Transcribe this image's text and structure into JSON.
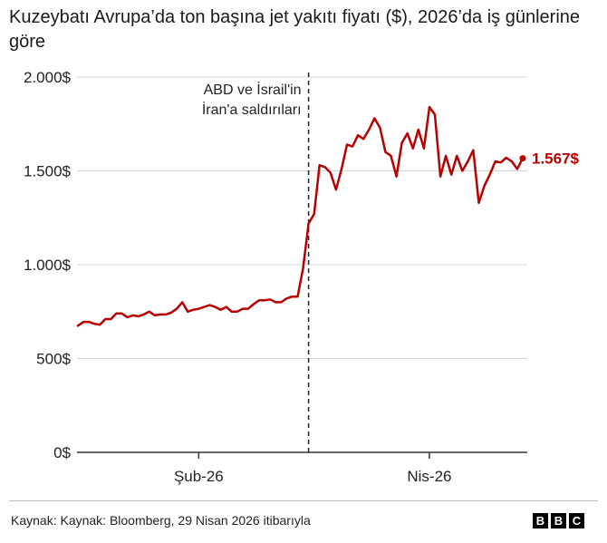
{
  "header": {
    "title": "Kuzeybatı Avrupa’da ton başına jet yakıtı fiyatı ($), 2026’da iş günlerine göre"
  },
  "footer": {
    "source": "Kaynak: Kaynak: Bloomberg, 29 Nisan 2026 itibarıyla",
    "logo_letters": [
      "B",
      "B",
      "C"
    ]
  },
  "colors": {
    "series": "#b80000",
    "grid": "#d5d5d5",
    "axis": "#333333",
    "text": "#222222"
  },
  "chart_data": {
    "type": "line",
    "title": "Kuzeybatı Avrupa’da ton başına jet yakıtı fiyatı ($), 2026’da iş günlerine göre",
    "xlabel": "",
    "ylabel": "",
    "ylim": [
      0,
      2000
    ],
    "yticks": [
      0,
      500,
      1000,
      1500,
      2000
    ],
    "ytick_labels": [
      "0$",
      "500$",
      "1.000$",
      "1.500$",
      "2.000$"
    ],
    "xticks": [
      {
        "label": "Şub-26",
        "index": 22
      },
      {
        "label": "Nis-26",
        "index": 64
      }
    ],
    "grid": true,
    "annotation": {
      "lines": [
        "ABD ve İsrail'in",
        "İran'a saldırıları"
      ],
      "index": 42
    },
    "end_label": "1.567$",
    "values": [
      675,
      695,
      695,
      685,
      680,
      710,
      710,
      740,
      740,
      720,
      730,
      725,
      735,
      750,
      730,
      735,
      735,
      745,
      765,
      800,
      750,
      760,
      765,
      775,
      785,
      775,
      760,
      775,
      750,
      750,
      765,
      765,
      790,
      810,
      810,
      815,
      800,
      800,
      820,
      830,
      830,
      980,
      1220,
      1270,
      1530,
      1520,
      1490,
      1400,
      1510,
      1640,
      1630,
      1690,
      1670,
      1720,
      1780,
      1730,
      1600,
      1580,
      1470,
      1650,
      1700,
      1620,
      1720,
      1620,
      1840,
      1800,
      1470,
      1580,
      1480,
      1580,
      1500,
      1550,
      1610,
      1330,
      1420,
      1480,
      1550,
      1545,
      1570,
      1550,
      1510,
      1567
    ]
  }
}
